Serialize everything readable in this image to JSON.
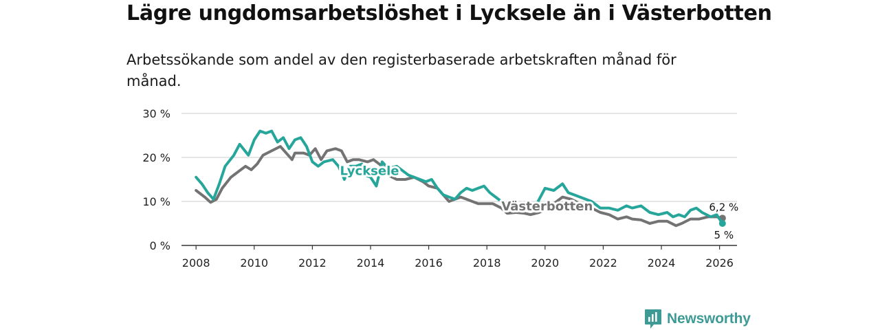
{
  "header": {
    "title": "Lägre ungdomsarbetslöshet i Lycksele än i Västerbotten",
    "subtitle": "Arbetssökande som andel av den registerbaserade arbetskraften månad för månad."
  },
  "brand": {
    "name": "Newsworthy",
    "icon": "newsworthy-logo-icon",
    "color": "#3d9a94"
  },
  "chart_data": {
    "type": "line",
    "title": "Lägre ungdomsarbetslöshet i Lycksele än i Västerbotten",
    "subtitle": "Arbetssökande som andel av den registerbaserade arbetskraften månad för månad.",
    "xlabel": "",
    "ylabel": "",
    "xlim": [
      2007.5,
      2026.6
    ],
    "ylim": [
      0,
      30
    ],
    "x_ticks": [
      2008,
      2010,
      2012,
      2014,
      2016,
      2018,
      2020,
      2022,
      2024,
      2026
    ],
    "x_tick_labels": [
      "2008",
      "2010",
      "2012",
      "2014",
      "2016",
      "2018",
      "2020",
      "2022",
      "2024",
      "2026"
    ],
    "y_ticks": [
      0,
      10,
      20,
      30
    ],
    "y_tick_labels": [
      "0 %",
      "10 %",
      "20 %",
      "30 %"
    ],
    "grid": true,
    "series": [
      {
        "name": "Västerbotten",
        "color": "#737373",
        "label": "Västerbotten",
        "end_label": "6,2 %",
        "end_value": 6.2,
        "points": [
          [
            2008.0,
            12.5
          ],
          [
            2008.3,
            11.0
          ],
          [
            2008.5,
            9.8
          ],
          [
            2008.7,
            10.5
          ],
          [
            2008.9,
            13.0
          ],
          [
            2009.2,
            15.5
          ],
          [
            2009.5,
            17.0
          ],
          [
            2009.7,
            18.0
          ],
          [
            2009.9,
            17.2
          ],
          [
            2010.1,
            18.5
          ],
          [
            2010.3,
            20.5
          ],
          [
            2010.6,
            21.5
          ],
          [
            2010.9,
            22.5
          ],
          [
            2011.1,
            21.0
          ],
          [
            2011.3,
            19.5
          ],
          [
            2011.4,
            21.0
          ],
          [
            2011.7,
            21.0
          ],
          [
            2011.9,
            20.5
          ],
          [
            2012.1,
            22.0
          ],
          [
            2012.3,
            19.5
          ],
          [
            2012.5,
            21.5
          ],
          [
            2012.8,
            22.0
          ],
          [
            2013.0,
            21.5
          ],
          [
            2013.2,
            19.0
          ],
          [
            2013.4,
            19.5
          ],
          [
            2013.6,
            19.5
          ],
          [
            2013.9,
            19.0
          ],
          [
            2014.1,
            19.5
          ],
          [
            2014.4,
            18.0
          ],
          [
            2014.6,
            16.0
          ],
          [
            2014.9,
            15.0
          ],
          [
            2015.2,
            15.0
          ],
          [
            2015.5,
            15.5
          ],
          [
            2015.8,
            14.5
          ],
          [
            2016.0,
            13.5
          ],
          [
            2016.3,
            13.0
          ],
          [
            2016.5,
            11.5
          ],
          [
            2016.7,
            10.0
          ],
          [
            2016.9,
            10.5
          ],
          [
            2017.1,
            11.0
          ],
          [
            2017.3,
            10.5
          ],
          [
            2017.5,
            10.0
          ],
          [
            2017.7,
            9.5
          ],
          [
            2017.9,
            9.5
          ],
          [
            2018.2,
            9.5
          ],
          [
            2018.5,
            8.5
          ],
          [
            2018.7,
            7.3
          ],
          [
            2019.0,
            7.5
          ],
          [
            2019.3,
            7.3
          ],
          [
            2019.5,
            7.0
          ],
          [
            2019.8,
            7.5
          ],
          [
            2020.1,
            8.5
          ],
          [
            2020.3,
            9.5
          ],
          [
            2020.6,
            11.0
          ],
          [
            2020.9,
            10.5
          ],
          [
            2021.2,
            9.5
          ],
          [
            2021.6,
            8.5
          ],
          [
            2021.9,
            7.5
          ],
          [
            2022.2,
            7.0
          ],
          [
            2022.5,
            6.0
          ],
          [
            2022.8,
            6.5
          ],
          [
            2023.0,
            6.0
          ],
          [
            2023.3,
            5.8
          ],
          [
            2023.6,
            5.0
          ],
          [
            2023.9,
            5.5
          ],
          [
            2024.2,
            5.5
          ],
          [
            2024.5,
            4.5
          ],
          [
            2024.7,
            5.0
          ],
          [
            2025.0,
            6.0
          ],
          [
            2025.3,
            6.0
          ],
          [
            2025.6,
            6.5
          ],
          [
            2025.9,
            6.5
          ],
          [
            2026.1,
            6.2
          ]
        ]
      },
      {
        "name": "Lycksele",
        "color": "#26a69a",
        "label": "Lycksele",
        "end_label": "5 %",
        "end_value": 5,
        "points": [
          [
            2008.0,
            15.5
          ],
          [
            2008.2,
            14.0
          ],
          [
            2008.4,
            12.0
          ],
          [
            2008.6,
            10.5
          ],
          [
            2008.8,
            14.0
          ],
          [
            2009.0,
            18.0
          ],
          [
            2009.3,
            20.5
          ],
          [
            2009.5,
            23.0
          ],
          [
            2009.8,
            20.5
          ],
          [
            2010.0,
            24.0
          ],
          [
            2010.2,
            26.0
          ],
          [
            2010.4,
            25.5
          ],
          [
            2010.6,
            26.0
          ],
          [
            2010.8,
            23.5
          ],
          [
            2011.0,
            24.5
          ],
          [
            2011.2,
            22.0
          ],
          [
            2011.4,
            24.0
          ],
          [
            2011.6,
            24.5
          ],
          [
            2011.8,
            22.5
          ],
          [
            2012.0,
            19.0
          ],
          [
            2012.2,
            18.0
          ],
          [
            2012.4,
            19.0
          ],
          [
            2012.7,
            19.5
          ],
          [
            2012.9,
            18.0
          ],
          [
            2013.1,
            15.0
          ],
          [
            2013.3,
            18.0
          ],
          [
            2013.5,
            18.0
          ],
          [
            2013.7,
            18.5
          ],
          [
            2013.8,
            16.0
          ],
          [
            2014.0,
            15.5
          ],
          [
            2014.2,
            13.5
          ],
          [
            2014.4,
            19.0
          ],
          [
            2014.6,
            17.5
          ],
          [
            2014.9,
            18.0
          ],
          [
            2015.1,
            17.0
          ],
          [
            2015.3,
            16.0
          ],
          [
            2015.5,
            15.5
          ],
          [
            2015.7,
            15.0
          ],
          [
            2015.9,
            14.5
          ],
          [
            2016.1,
            15.0
          ],
          [
            2016.3,
            13.0
          ],
          [
            2016.5,
            11.5
          ],
          [
            2016.7,
            11.0
          ],
          [
            2016.9,
            10.5
          ],
          [
            2017.1,
            12.0
          ],
          [
            2017.3,
            13.0
          ],
          [
            2017.5,
            12.5
          ],
          [
            2017.7,
            13.0
          ],
          [
            2017.9,
            13.5
          ],
          [
            2018.1,
            12.0
          ],
          [
            2018.3,
            11.0
          ],
          [
            2018.5,
            10.0
          ],
          [
            2018.7,
            9.5
          ],
          [
            2019.0,
            9.0
          ],
          [
            2019.3,
            8.5
          ],
          [
            2019.6,
            8.0
          ],
          [
            2019.8,
            10.5
          ],
          [
            2020.0,
            13.0
          ],
          [
            2020.3,
            12.5
          ],
          [
            2020.6,
            14.0
          ],
          [
            2020.8,
            12.0
          ],
          [
            2021.0,
            11.5
          ],
          [
            2021.2,
            11.0
          ],
          [
            2021.6,
            10.0
          ],
          [
            2021.9,
            8.5
          ],
          [
            2022.2,
            8.5
          ],
          [
            2022.5,
            8.0
          ],
          [
            2022.8,
            9.0
          ],
          [
            2023.0,
            8.5
          ],
          [
            2023.3,
            9.0
          ],
          [
            2023.6,
            7.5
          ],
          [
            2023.9,
            7.0
          ],
          [
            2024.2,
            7.5
          ],
          [
            2024.4,
            6.5
          ],
          [
            2024.6,
            7.0
          ],
          [
            2024.8,
            6.5
          ],
          [
            2025.0,
            8.0
          ],
          [
            2025.2,
            8.5
          ],
          [
            2025.4,
            7.5
          ],
          [
            2025.7,
            6.5
          ],
          [
            2025.9,
            7.0
          ],
          [
            2026.1,
            5.0
          ]
        ]
      }
    ]
  }
}
